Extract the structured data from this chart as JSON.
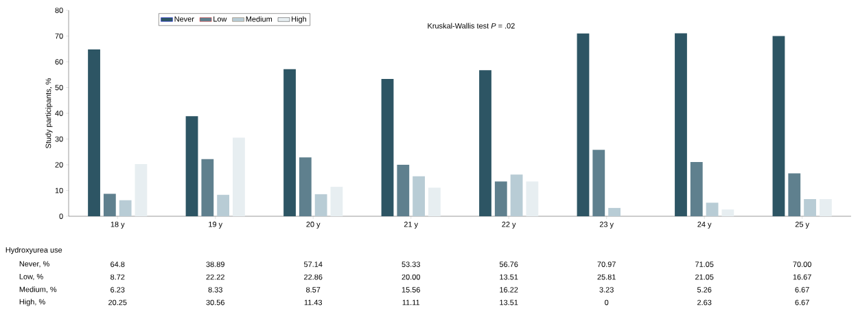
{
  "chart_data": {
    "type": "bar",
    "ylabel": "Study participants, %",
    "categories": [
      "18 y",
      "19 y",
      "20 y",
      "21 y",
      "22 y",
      "23 y",
      "24 y",
      "25 y"
    ],
    "series": [
      {
        "name": "Never",
        "color": "#2d5564",
        "values": [
          64.8,
          38.89,
          57.14,
          53.33,
          56.76,
          70.97,
          71.05,
          70.0
        ],
        "value_labels": [
          "64.8",
          "38.89",
          "57.14",
          "53.33",
          "56.76",
          "70.97",
          "71.05",
          "70.00"
        ]
      },
      {
        "name": "Low",
        "color": "#5f808e",
        "values": [
          8.72,
          22.22,
          22.86,
          20.0,
          13.51,
          25.81,
          21.05,
          16.67
        ],
        "value_labels": [
          "8.72",
          "22.22",
          "22.86",
          "20.00",
          "13.51",
          "25.81",
          "21.05",
          "16.67"
        ]
      },
      {
        "name": "Medium",
        "color": "#b8ccd5",
        "values": [
          6.23,
          8.33,
          8.57,
          15.56,
          16.22,
          3.23,
          5.26,
          6.67
        ],
        "value_labels": [
          "6.23",
          "8.33",
          "8.57",
          "15.56",
          "16.22",
          "3.23",
          "5.26",
          "6.67"
        ]
      },
      {
        "name": "High",
        "color": "#e7eef1",
        "values": [
          20.25,
          30.56,
          11.43,
          11.11,
          13.51,
          0,
          2.63,
          6.67
        ],
        "value_labels": [
          "20.25",
          "30.56",
          "11.43",
          "11.11",
          "13.51",
          "0",
          "2.63",
          "6.67"
        ]
      }
    ],
    "ylim": [
      0,
      80
    ],
    "yticks": [
      0,
      10,
      20,
      30,
      40,
      50,
      60,
      70,
      80
    ],
    "legend": "top left",
    "grid": false,
    "annotations": [
      "Kruskal-Wallis test *P* = .02",
      "Hydroxyurea use",
      "Never, %",
      "Low, %",
      "Medium, %",
      "High, %"
    ]
  }
}
